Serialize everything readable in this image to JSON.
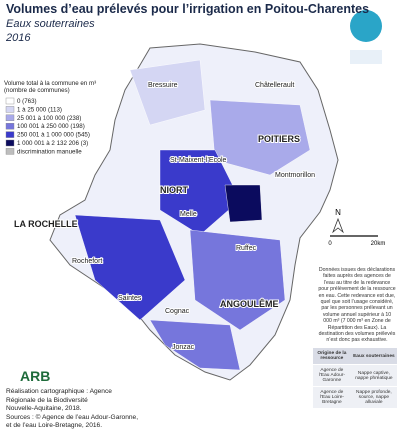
{
  "header": {
    "title": "Volumes d’eau prélevés pour l’irrigation en Poitou-Charentes",
    "subtitle": "Eaux souterraines",
    "year": "2016"
  },
  "legend": {
    "title": "Volume total à la commune en m³ (nombre de communes)",
    "items": [
      {
        "label": "0 (763)",
        "color": "#ffffff"
      },
      {
        "label": "1 à 25 000 (113)",
        "color": "#d4d6f3"
      },
      {
        "label": "25 001 à 100 000 (238)",
        "color": "#a9aaea"
      },
      {
        "label": "100 001 à 250 000 (198)",
        "color": "#7676dc"
      },
      {
        "label": "250 001 à 1 000 000 (545)",
        "color": "#3a3acb"
      },
      {
        "label": "1 000 001 à 2 132 206 (3)",
        "color": "#0b0b5e"
      },
      {
        "label": "discrimination manuelle",
        "color": "#bdbdbd"
      }
    ]
  },
  "cities": [
    "Bressuire",
    "Châtellerault",
    "POITIERS",
    "St-Maixent-l’Ecole",
    "NIORT",
    "Montmorillon",
    "Melle",
    "LA ROCHELLE",
    "Ruffec",
    "Rochefort",
    "Saintes",
    "Cognac",
    "ANGOULÊME",
    "Jonzac"
  ],
  "scale": {
    "north": "N",
    "start": "0",
    "end": "20km"
  },
  "note": "Données issues des déclarations faites auprès des agences de l’eau au titre de la redevance pour prélèvement de la ressource en eau. Cette redevance est due, quel que soit l’usage considéré, par les personnes prélevant un volume annuel supérieur à 10 000 m³ (7 000 m³ en Zone de Répartition des Eaux). La destination des volumes prélevés n’est donc pas exhaustive.",
  "table": {
    "rows": [
      [
        "Origine de la ressource",
        "Eaux souterraines"
      ],
      [
        "Agence de l’Eau Adour-Garonne",
        "Nappe captive, nappe phréatique"
      ],
      [
        "Agence de l’Eau Loire-Bretagne",
        "Nappe profonde, source, nappe alluviale"
      ]
    ]
  },
  "logo": "ARB",
  "credits": [
    "Réalisation cartographique : Agence",
    "Régionale de la Biodiversité",
    "Nouvelle-Aquitaine, 2018.",
    "Sources : © Agence de l’eau Adour-Garonne,",
    "et de l’eau Loire-Bretagne, 2016."
  ]
}
